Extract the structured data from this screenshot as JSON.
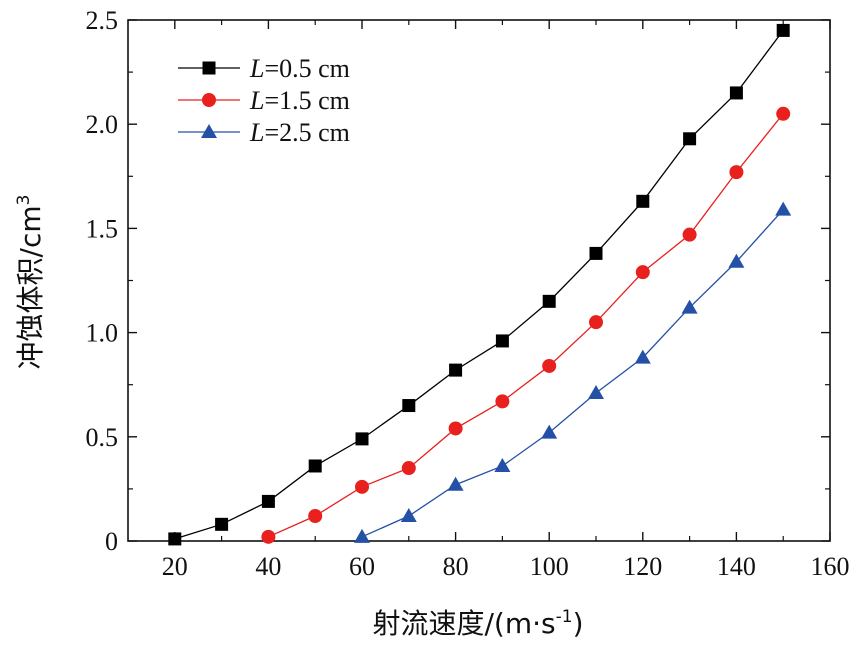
{
  "chart_data": {
    "type": "line",
    "xlabel": "射流速度/(m·s-1)",
    "xlabel_parts": {
      "main": "射流速度/(m·s",
      "sup": "-1",
      "close": ")"
    },
    "ylabel": "冲蚀体积/cm3",
    "ylabel_parts": {
      "main": "冲蚀体积/cm",
      "sup": "3"
    },
    "xlim": [
      10,
      160
    ],
    "ylim": [
      0,
      2.5
    ],
    "x_ticks": [
      20,
      40,
      60,
      80,
      100,
      120,
      140,
      160
    ],
    "x_tick_labels": [
      "20",
      "40",
      "60",
      "80",
      "100",
      "120",
      "140",
      "160"
    ],
    "y_ticks": [
      0,
      0.5,
      1.0,
      1.5,
      2.0,
      2.5
    ],
    "y_tick_labels": [
      "0",
      "0.5",
      "1.0",
      "1.5",
      "2.0",
      "2.5"
    ],
    "grid": false,
    "legend_position": "top-left",
    "series": [
      {
        "name": "L=0.5 cm",
        "legend": {
          "italic": "L",
          "rest": "=0.5 cm"
        },
        "color": "#000000",
        "marker": "square",
        "x": [
          20,
          30,
          40,
          50,
          60,
          70,
          80,
          90,
          100,
          110,
          120,
          130,
          140,
          150
        ],
        "y": [
          0.01,
          0.08,
          0.19,
          0.36,
          0.49,
          0.65,
          0.82,
          0.96,
          1.15,
          1.38,
          1.63,
          1.93,
          2.15,
          2.45
        ]
      },
      {
        "name": "L=1.5 cm",
        "legend": {
          "italic": "L",
          "rest": "=1.5 cm"
        },
        "color": "#e8201e",
        "marker": "circle",
        "x": [
          40,
          50,
          60,
          70,
          80,
          90,
          100,
          110,
          120,
          130,
          140,
          150
        ],
        "y": [
          0.02,
          0.12,
          0.26,
          0.35,
          0.54,
          0.67,
          0.84,
          1.05,
          1.29,
          1.47,
          1.77,
          2.05
        ]
      },
      {
        "name": "L=2.5 cm",
        "legend": {
          "italic": "L",
          "rest": "=2.5 cm"
        },
        "color": "#2451a6",
        "marker": "triangle",
        "x": [
          60,
          70,
          80,
          90,
          100,
          110,
          120,
          130,
          140,
          150
        ],
        "y": [
          0.02,
          0.12,
          0.27,
          0.36,
          0.52,
          0.71,
          0.88,
          1.12,
          1.34,
          1.59
        ]
      }
    ]
  }
}
